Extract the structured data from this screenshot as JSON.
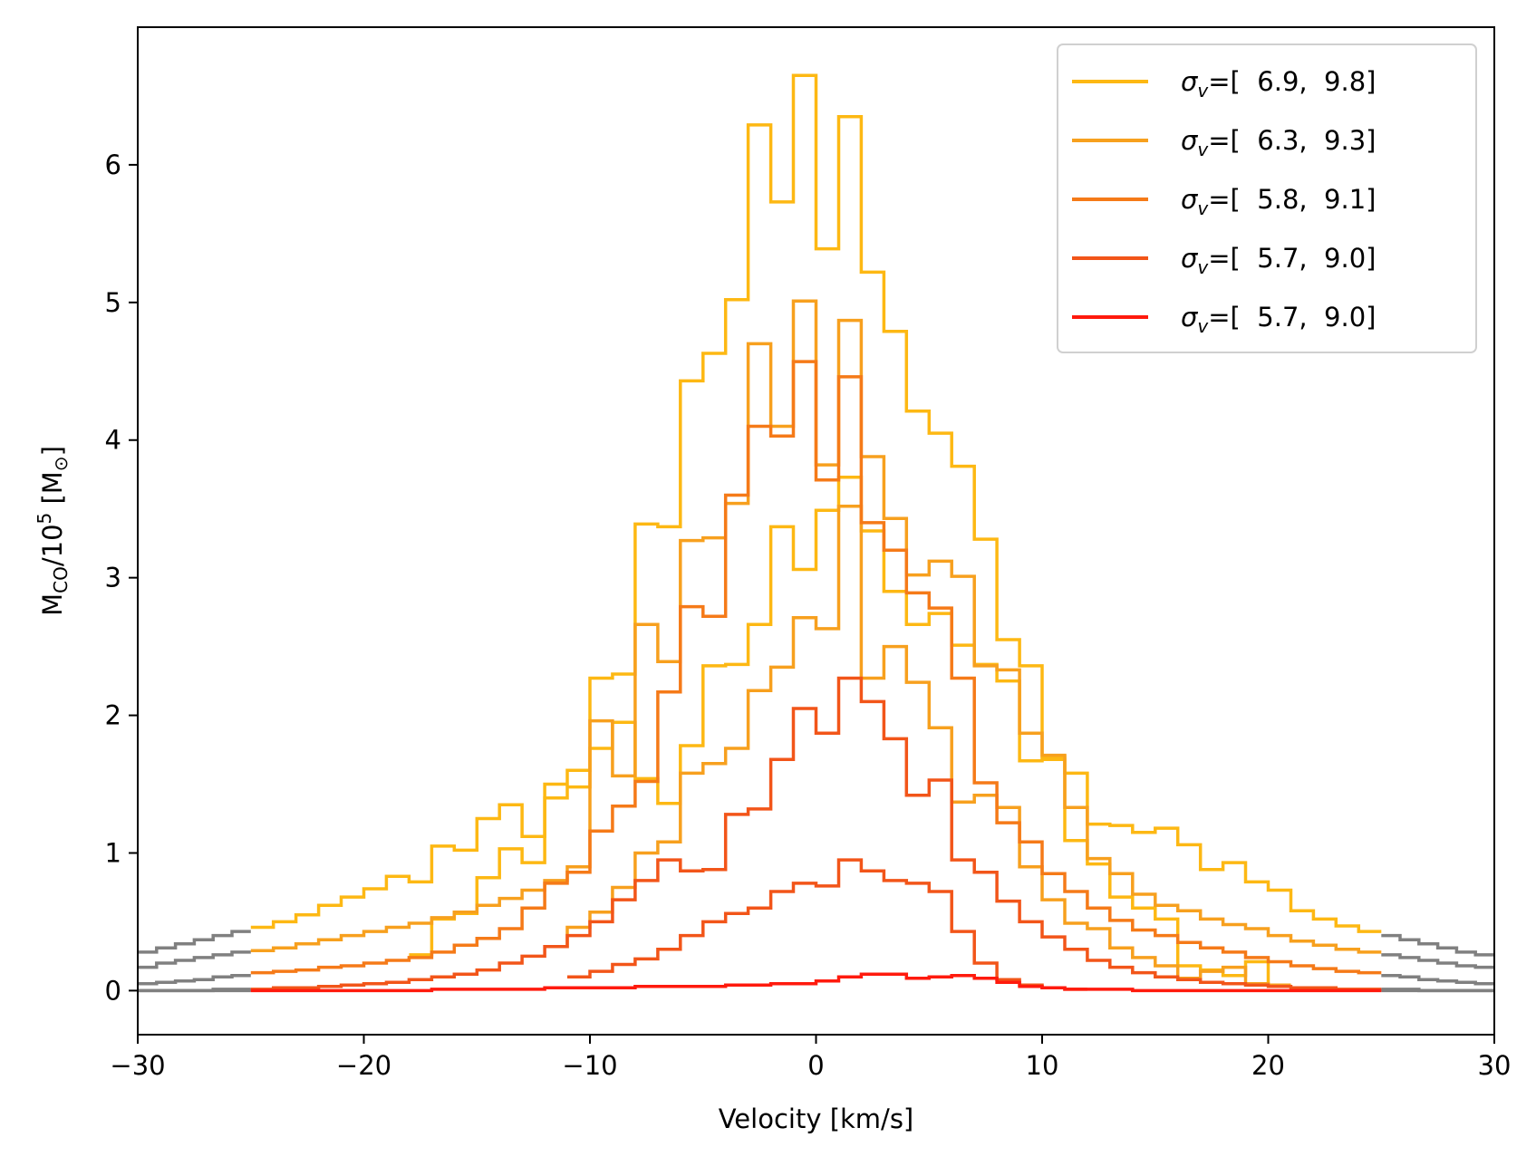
{
  "chart_data": {
    "type": "line",
    "step": true,
    "xlabel": "Velocity [km/s]",
    "ylabel": {
      "base": "M",
      "sub": "CO",
      "mid": "/10",
      "sup": "5",
      "unit": " [M",
      "unit_sub": "⊙",
      "close": "]"
    },
    "xlim": [
      -30,
      30
    ],
    "ylim": [
      -0.32,
      7.0
    ],
    "x_ticks": [
      -30,
      -20,
      -10,
      0,
      10,
      20,
      30
    ],
    "x_tick_labels": [
      "−30",
      "−20",
      "−10",
      "0",
      "10",
      "20",
      "30"
    ],
    "y_ticks": [
      0,
      1,
      2,
      3,
      4,
      5,
      6
    ],
    "y_tick_labels": [
      "0",
      "1",
      "2",
      "3",
      "4",
      "5",
      "6"
    ],
    "grid": false,
    "legend_position": "top-right",
    "legend_prefix": "σ",
    "legend_prefix_sub": "v",
    "outside_color": "#808080",
    "series": [
      {
        "name": "=[  6.9,  9.8]",
        "color": "#FDB813",
        "x": [
          -24.5,
          -23.5,
          -22.5,
          -21.5,
          -20.5,
          -19.5,
          -18.5,
          -17.5,
          -16.5,
          -15.5,
          -14.5,
          -13.5,
          -12.5,
          -11.5,
          -10.5,
          -9.5,
          -8.5,
          -7.5,
          -6.5,
          -5.5,
          -4.5,
          -3.5,
          -2.5,
          -1.5,
          -0.5,
          0.5,
          1.5,
          2.5,
          3.5,
          4.5,
          5.5,
          6.5,
          7.5,
          8.5,
          9.5,
          10.5,
          11.5,
          12.5,
          13.5,
          14.5,
          15.5,
          16.5,
          17.5,
          18.5,
          19.5,
          20.5,
          21.5,
          22.5,
          23.5,
          24.5
        ],
        "values": [
          0.46,
          0.5,
          0.55,
          0.62,
          0.68,
          0.74,
          0.83,
          0.79,
          1.05,
          1.02,
          1.25,
          1.35,
          1.12,
          1.5,
          1.6,
          2.27,
          2.3,
          3.39,
          3.37,
          4.43,
          4.63,
          5.02,
          6.29,
          5.73,
          6.65,
          5.39,
          6.35,
          5.22,
          4.79,
          4.21,
          4.05,
          3.81,
          3.28,
          2.55,
          2.36,
          1.7,
          1.58,
          1.21,
          1.2,
          1.15,
          1.18,
          1.06,
          0.88,
          0.93,
          0.79,
          0.73,
          0.58,
          0.52,
          0.47,
          0.43
        ],
        "outside_left": [
          0.28,
          0.31,
          0.34,
          0.37,
          0.4,
          0.43
        ],
        "outside_right": [
          0.4,
          0.37,
          0.34,
          0.31,
          0.28,
          0.26
        ]
      },
      {
        "name": "=[  6.3,  9.3]",
        "color": "#F7A01E",
        "x": [
          -24.5,
          -23.5,
          -22.5,
          -21.5,
          -20.5,
          -19.5,
          -18.5,
          -17.5,
          -16.5,
          -15.5,
          -14.5,
          -13.5,
          -12.5,
          -11.5,
          -10.5,
          -9.5,
          -8.5,
          -7.5,
          -6.5,
          -5.5,
          -4.5,
          -3.5,
          -2.5,
          -1.5,
          -0.5,
          0.5,
          1.5,
          2.5,
          3.5,
          4.5,
          5.5,
          6.5,
          7.5,
          8.5,
          9.5,
          10.5,
          11.5,
          12.5,
          13.5,
          14.5,
          15.5,
          16.5,
          17.5,
          18.5,
          19.5,
          20.5,
          21.5,
          22.5,
          23.5,
          24.5
        ],
        "values": [
          0.29,
          0.31,
          0.34,
          0.37,
          0.4,
          0.43,
          0.46,
          0.49,
          0.53,
          0.57,
          0.62,
          0.67,
          0.73,
          0.8,
          0.9,
          1.96,
          1.56,
          2.66,
          2.39,
          3.27,
          3.29,
          3.54,
          4.7,
          4.1,
          5.01,
          3.82,
          4.87,
          3.88,
          3.43,
          3.02,
          3.12,
          3.01,
          2.36,
          2.33,
          1.87,
          1.71,
          1.33,
          0.96,
          0.85,
          0.7,
          0.62,
          0.58,
          0.52,
          0.48,
          0.45,
          0.4,
          0.36,
          0.33,
          0.3,
          0.28
        ],
        "outside_left": [
          0.17,
          0.2,
          0.22,
          0.24,
          0.26,
          0.28
        ],
        "outside_right": [
          0.26,
          0.24,
          0.22,
          0.2,
          0.18,
          0.17
        ]
      },
      {
        "name": "=[  5.8,  9.1]",
        "color": "#F57A18",
        "x": [
          -24.5,
          -23.5,
          -22.5,
          -21.5,
          -20.5,
          -19.5,
          -18.5,
          -17.5,
          -16.5,
          -15.5,
          -14.5,
          -13.5,
          -12.5,
          -11.5,
          -10.5,
          -9.5,
          -8.5,
          -7.5,
          -6.5,
          -5.5,
          -4.5,
          -3.5,
          -2.5,
          -1.5,
          -0.5,
          0.5,
          1.5,
          2.5,
          3.5,
          4.5,
          5.5,
          6.5,
          7.5,
          8.5,
          9.5,
          10.5,
          11.5,
          12.5,
          13.5,
          14.5,
          15.5,
          16.5,
          17.5,
          18.5,
          19.5,
          20.5,
          21.5,
          22.5,
          23.5,
          24.5
        ],
        "values": [
          0.13,
          0.14,
          0.15,
          0.17,
          0.18,
          0.2,
          0.22,
          0.24,
          0.28,
          0.33,
          0.38,
          0.45,
          0.6,
          0.78,
          0.86,
          1.16,
          1.34,
          1.52,
          2.17,
          2.79,
          2.72,
          3.6,
          4.1,
          4.03,
          4.57,
          3.71,
          4.46,
          3.4,
          3.2,
          2.89,
          2.78,
          2.27,
          1.51,
          1.22,
          1.08,
          0.85,
          0.72,
          0.6,
          0.51,
          0.44,
          0.4,
          0.35,
          0.31,
          0.28,
          0.24,
          0.21,
          0.18,
          0.16,
          0.14,
          0.13
        ],
        "outside_left": [
          0.05,
          0.06,
          0.07,
          0.08,
          0.1,
          0.11
        ],
        "outside_right": [
          0.11,
          0.1,
          0.08,
          0.07,
          0.06,
          0.05
        ]
      },
      {
        "name": "=[  5.7,  9.0]",
        "color": "#F25519",
        "x": [
          -24.5,
          -23.5,
          -22.5,
          -21.5,
          -20.5,
          -19.5,
          -18.5,
          -17.5,
          -16.5,
          -15.5,
          -14.5,
          -13.5,
          -12.5,
          -11.5,
          -10.5,
          -9.5,
          -8.5,
          -7.5,
          -6.5,
          -5.5,
          -4.5,
          -3.5,
          -2.5,
          -1.5,
          -0.5,
          0.5,
          1.5,
          2.5,
          3.5,
          4.5,
          5.5,
          6.5,
          7.5,
          8.5,
          9.5,
          10.5,
          11.5,
          12.5,
          13.5,
          14.5,
          15.5,
          16.5,
          17.5,
          18.5,
          19.5,
          20.5,
          21.5,
          22.5,
          23.5,
          24.5
        ],
        "values": [
          0.01,
          0.02,
          0.02,
          0.03,
          0.04,
          0.05,
          0.06,
          0.08,
          0.1,
          0.12,
          0.15,
          0.2,
          0.25,
          0.32,
          0.4,
          0.5,
          0.66,
          0.8,
          0.95,
          0.87,
          0.88,
          1.28,
          1.32,
          1.68,
          2.05,
          1.87,
          2.27,
          2.1,
          1.83,
          1.42,
          1.53,
          0.95,
          0.86,
          0.65,
          0.5,
          0.39,
          0.3,
          0.22,
          0.17,
          0.13,
          0.1,
          0.08,
          0.06,
          0.05,
          0.04,
          0.03,
          0.02,
          0.02,
          0.01,
          0.01
        ],
        "outside_left": [
          0.0,
          0.0,
          0.0,
          0.0,
          0.01,
          0.01
        ],
        "outside_right": [
          0.01,
          0.01,
          0.0,
          0.0,
          0.0,
          0.0
        ]
      },
      {
        "name": "=[  5.7,  9.0]",
        "color": "#FF1A0D",
        "x": [
          -24.5,
          -23.5,
          -22.5,
          -21.5,
          -20.5,
          -19.5,
          -18.5,
          -17.5,
          -16.5,
          -15.5,
          -14.5,
          -13.5,
          -12.5,
          -11.5,
          -10.5,
          -9.5,
          -8.5,
          -7.5,
          -6.5,
          -5.5,
          -4.5,
          -3.5,
          -2.5,
          -1.5,
          -0.5,
          0.5,
          1.5,
          2.5,
          3.5,
          4.5,
          5.5,
          6.5,
          7.5,
          8.5,
          9.5,
          10.5,
          11.5,
          12.5,
          13.5,
          14.5,
          15.5,
          16.5,
          17.5,
          18.5,
          19.5,
          20.5,
          21.5,
          22.5,
          23.5,
          24.5
        ],
        "values": [
          0.0,
          0.0,
          0.0,
          0.0,
          0.0,
          0.0,
          0.0,
          0.0,
          0.01,
          0.01,
          0.01,
          0.01,
          0.01,
          0.02,
          0.02,
          0.02,
          0.02,
          0.03,
          0.03,
          0.03,
          0.03,
          0.04,
          0.04,
          0.05,
          0.05,
          0.07,
          0.1,
          0.12,
          0.12,
          0.09,
          0.1,
          0.11,
          0.09,
          0.06,
          0.03,
          0.02,
          0.01,
          0.01,
          0.01,
          0.0,
          0.0,
          0.0,
          0.0,
          0.0,
          0.0,
          0.0,
          0.0,
          0.0,
          0.0,
          0.0
        ],
        "outside_left": [
          0.0,
          0.0,
          0.0,
          0.0,
          0.0,
          0.0
        ],
        "outside_right": [
          0.0,
          0.0,
          0.0,
          0.0,
          0.0,
          0.0
        ]
      }
    ],
    "extra_lines": [
      {
        "color": "#FDB813",
        "x": [
          -17.5,
          -16.5,
          -15.5,
          -14.5,
          -13.5,
          -12.5,
          -11.5,
          -10.5,
          -9.5,
          -8.5,
          -7.5,
          -6.5,
          -5.5,
          -4.5,
          -3.5,
          -2.5,
          -1.5,
          -0.5,
          0.5,
          1.5,
          2.5,
          3.5,
          4.5,
          5.5,
          6.5,
          7.5,
          8.5,
          9.5,
          10.5,
          11.5,
          12.5,
          13.5,
          14.5,
          15.5,
          16.5,
          17.5,
          18.5,
          19.5,
          20.5
        ],
        "values": [
          0.26,
          0.52,
          0.56,
          0.82,
          1.03,
          0.93,
          1.4,
          1.48,
          1.76,
          1.95,
          1.54,
          1.36,
          1.78,
          2.36,
          2.37,
          2.66,
          3.37,
          3.06,
          3.49,
          3.73,
          3.34,
          2.9,
          2.66,
          2.74,
          2.51,
          2.37,
          2.25,
          1.67,
          1.68,
          1.09,
          0.92,
          0.68,
          0.6,
          0.52,
          0.18,
          0.15,
          0.11,
          0.21,
          0.04
        ]
      },
      {
        "color": "#F7A01E",
        "x": [
          -11.5,
          -10.5,
          -9.5,
          -8.5,
          -7.5,
          -6.5,
          -5.5,
          -4.5,
          -3.5,
          -2.5,
          -1.5,
          -0.5,
          0.5,
          1.5,
          2.5,
          3.5,
          4.5,
          5.5,
          6.5,
          7.5,
          8.5,
          9.5,
          10.5,
          11.5,
          12.5,
          13.5,
          14.5,
          15.5,
          16.5,
          17.5,
          18.5,
          19.5,
          20.5
        ],
        "values": [
          0.32,
          0.46,
          0.57,
          0.75,
          1.0,
          1.08,
          1.58,
          1.65,
          1.76,
          2.18,
          2.35,
          2.71,
          2.63,
          3.52,
          2.27,
          2.5,
          2.24,
          1.91,
          1.37,
          1.42,
          1.33,
          0.9,
          0.66,
          0.49,
          0.45,
          0.31,
          0.24,
          0.18,
          0.09,
          0.14,
          0.17,
          0.05,
          0.04
        ]
      },
      {
        "color": "#F25519",
        "x": [
          -10.5,
          -9.5,
          -8.5,
          -7.5,
          -6.5,
          -5.5,
          -4.5,
          -3.5,
          -2.5,
          -1.5,
          -0.5,
          0.5,
          1.5,
          2.5,
          3.5,
          4.5,
          5.5,
          6.5,
          7.5,
          8.5,
          9.5,
          10.5,
          11.5
        ],
        "values": [
          0.1,
          0.14,
          0.19,
          0.23,
          0.3,
          0.4,
          0.5,
          0.56,
          0.6,
          0.72,
          0.78,
          0.76,
          0.95,
          0.87,
          0.8,
          0.78,
          0.72,
          0.43,
          0.2,
          0.08,
          0.04,
          0.02,
          0.01
        ]
      }
    ]
  }
}
